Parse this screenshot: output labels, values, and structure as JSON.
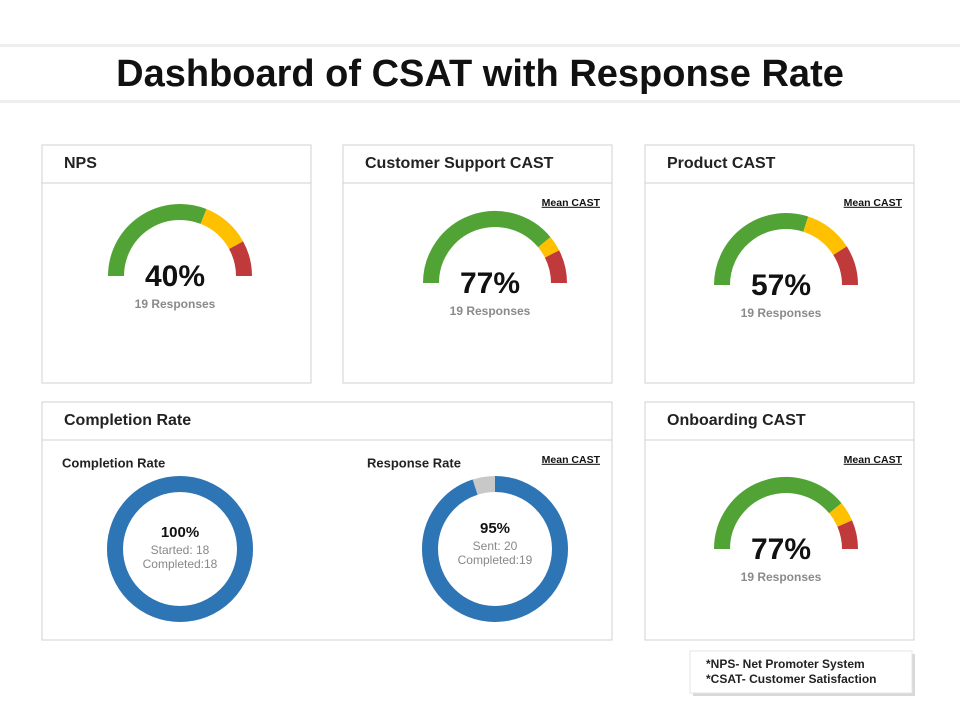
{
  "title": "Dashboard of CSAT with Response Rate",
  "gauges": [
    {
      "title": "NPS",
      "value": 40,
      "value_label": "40%",
      "caption": "19 Responses",
      "segments": [
        {
          "color": "#52a336",
          "value": 62
        },
        {
          "color": "#ffc000",
          "value": 22
        },
        {
          "color": "#c0393b",
          "value": 16
        }
      ]
    },
    {
      "title": "Customer Support CAST",
      "legend": "Mean CAST",
      "value": 77,
      "value_label": "77%",
      "caption": "19 Responses",
      "segments": [
        {
          "color": "#52a336",
          "value": 78
        },
        {
          "color": "#ffc000",
          "value": 7
        },
        {
          "color": "#c0393b",
          "value": 15
        }
      ]
    },
    {
      "title": "Product CAST",
      "legend": "Mean CAST",
      "value": 57,
      "value_label": "57%",
      "caption": "19 Responses",
      "segments": [
        {
          "color": "#52a336",
          "value": 60
        },
        {
          "color": "#ffc000",
          "value": 22
        },
        {
          "color": "#c0393b",
          "value": 18
        }
      ]
    },
    {
      "title": "Onboarding CAST",
      "legend": "Mean CAST",
      "value": 77,
      "value_label": "77%",
      "caption": "19 Responses",
      "segments": [
        {
          "color": "#52a336",
          "value": 78
        },
        {
          "color": "#ffc000",
          "value": 9
        },
        {
          "color": "#c0393b",
          "value": 13
        }
      ]
    }
  ],
  "completion": {
    "title": "Completion Rate",
    "legend": "Mean CAST",
    "color": "#2e75b6",
    "rest_color": "#c8c8c8",
    "donuts": [
      {
        "title": "Completion Rate",
        "value": 100,
        "value_label": "100%",
        "lines": [
          "Started: 18",
          "Completed:18"
        ]
      },
      {
        "title": "Response  Rate",
        "value": 95,
        "value_label": "95%",
        "lines": [
          "Sent: 20",
          "Completed:19"
        ]
      }
    ]
  },
  "footnotes": [
    "*NPS- Net Promoter System",
    "*CSAT- Customer Satisfaction"
  ]
}
